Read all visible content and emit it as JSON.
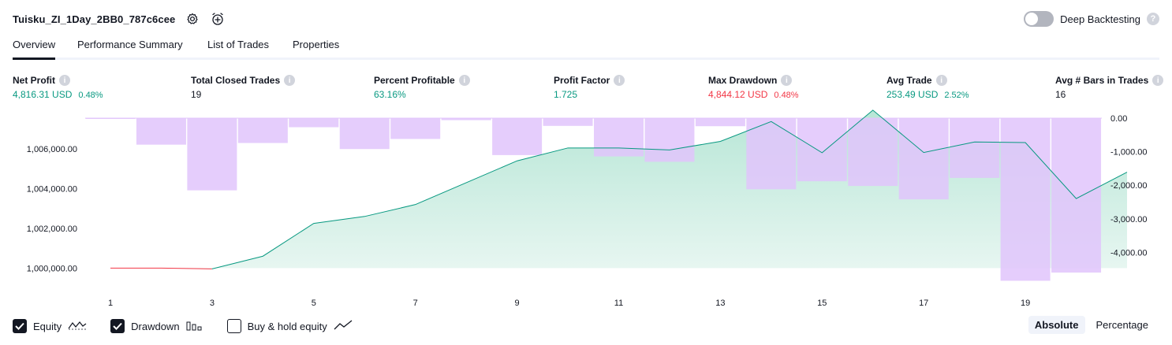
{
  "header": {
    "title": "Tuisku_ZI_1Day_2BB0_787c6cee",
    "deep_label": "Deep Backtesting"
  },
  "tabs": [
    {
      "label": "Overview",
      "active": true
    },
    {
      "label": "Performance Summary",
      "active": false
    },
    {
      "label": "List of Trades",
      "active": false
    },
    {
      "label": "Properties",
      "active": false
    }
  ],
  "metrics": [
    {
      "label": "Net Profit",
      "value": "4,816.31 USD",
      "pct": "0.48%",
      "tone": "pos"
    },
    {
      "label": "Total Closed Trades",
      "value": "19",
      "pct": "",
      "tone": "neutral"
    },
    {
      "label": "Percent Profitable",
      "value": "63.16%",
      "pct": "",
      "tone": "pos"
    },
    {
      "label": "Profit Factor",
      "value": "1.725",
      "pct": "",
      "tone": "pos"
    },
    {
      "label": "Max Drawdown",
      "value": "4,844.12 USD",
      "pct": "0.48%",
      "tone": "neg"
    },
    {
      "label": "Avg Trade",
      "value": "253.49 USD",
      "pct": "2.52%",
      "tone": "pos"
    },
    {
      "label": "Avg # Bars in Trades",
      "value": "16",
      "pct": "",
      "tone": "neutral"
    }
  ],
  "legend": {
    "equity": "Equity",
    "drawdown": "Drawdown",
    "buy_hold": "Buy & hold equity",
    "equity_checked": true,
    "drawdown_checked": true,
    "buy_hold_checked": false
  },
  "modes": {
    "absolute": "Absolute",
    "percentage": "Percentage",
    "active": "absolute"
  },
  "colors": {
    "equity_line": "#089981",
    "equity_fill": "#cdeee3",
    "negative_line": "#f23645",
    "drawdown_bar": "#e1c4fb",
    "overlap_bar": "#b8b8eb",
    "overlap_line": "#5b9bd5"
  },
  "chart_data": {
    "type": "area",
    "x_ticks": [
      "1",
      "3",
      "5",
      "7",
      "9",
      "11",
      "13",
      "15",
      "17",
      "19"
    ],
    "left_ticks": [
      "1,000,000.00",
      "1,002,000.00",
      "1,004,000.00",
      "1,006,000.00"
    ],
    "right_ticks": [
      "0.00",
      "-1,000.00",
      "-2,000.00",
      "-3,000.00",
      "-4,000.00"
    ],
    "left_ylim": [
      999300,
      1007550
    ],
    "right_ylim": [
      -4880,
      0
    ],
    "series": [
      {
        "name": "Equity",
        "type": "line",
        "x": [
          0,
          1,
          2,
          3,
          4,
          5,
          6,
          7,
          8,
          9,
          10,
          11,
          12,
          13,
          14,
          15,
          16,
          17,
          18,
          19,
          20
        ],
        "values": [
          1000000,
          1000000,
          999960,
          1000600,
          1002250,
          1002600,
          1003200,
          1004300,
          1005400,
          1006050,
          1006050,
          1005950,
          1006380,
          1007380,
          1005810,
          1007950,
          1005820,
          1006350,
          1006320,
          1003500,
          1004830
        ]
      },
      {
        "name": "Drawdown",
        "type": "bar",
        "categories": [
          "1",
          "2",
          "3",
          "4",
          "5",
          "6",
          "7",
          "8",
          "9",
          "10",
          "11",
          "12",
          "13",
          "14",
          "15",
          "16",
          "17",
          "18",
          "19",
          "20"
        ],
        "values": [
          -10,
          -790,
          -2150,
          -740,
          -270,
          -920,
          -620,
          -60,
          -1100,
          -230,
          -1140,
          -1300,
          -240,
          -2120,
          -1880,
          -2020,
          -2420,
          -1780,
          -4844,
          -4600
        ]
      }
    ]
  }
}
